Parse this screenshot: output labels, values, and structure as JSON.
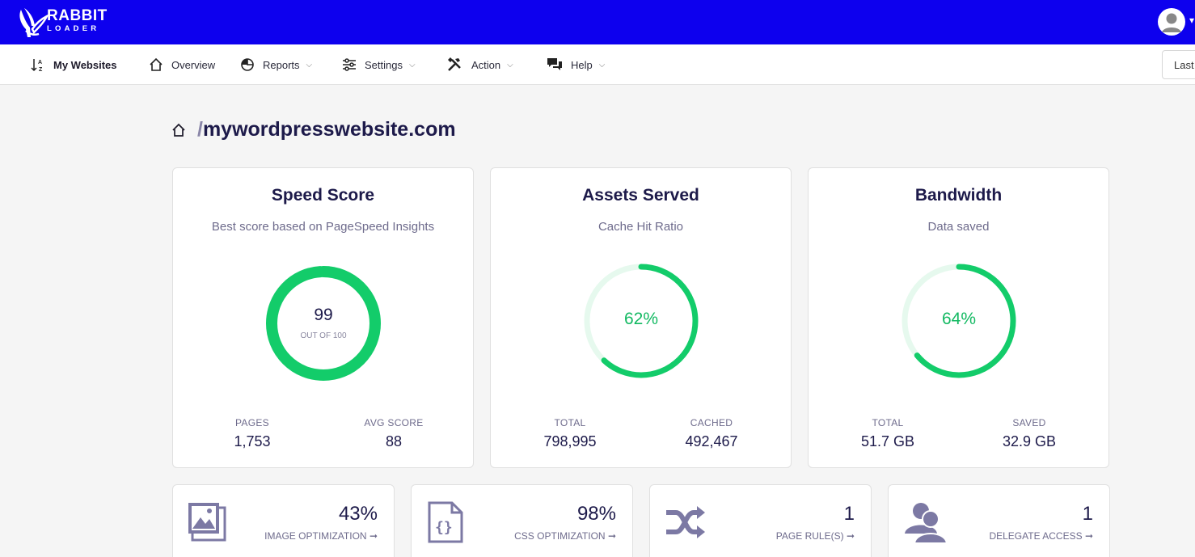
{
  "brand": {
    "line1": "RABBIT",
    "line2": "LOADER"
  },
  "nav": {
    "my_websites": "My Websites",
    "overview": "Overview",
    "reports": "Reports",
    "settings": "Settings",
    "action": "Action",
    "help": "Help",
    "range": "Last"
  },
  "site": {
    "slash": "/",
    "name": "mywordpresswebsite.com"
  },
  "cards": {
    "speed": {
      "title": "Speed Score",
      "subtitle": "Best score based on PageSpeed Insights",
      "value": "99",
      "value_sub": "OUT OF 100",
      "percent": 99,
      "stats": [
        {
          "label": "PAGES",
          "value": "1,753"
        },
        {
          "label": "AVG SCORE",
          "value": "88"
        }
      ]
    },
    "assets": {
      "title": "Assets Served",
      "subtitle": "Cache Hit Ratio",
      "value": "62%",
      "percent": 62,
      "stats": [
        {
          "label": "TOTAL",
          "value": "798,995"
        },
        {
          "label": "CACHED",
          "value": "492,467"
        }
      ]
    },
    "bandwidth": {
      "title": "Bandwidth",
      "subtitle": "Data saved",
      "value": "64%",
      "percent": 64,
      "stats": [
        {
          "label": "TOTAL",
          "value": "51.7 GB"
        },
        {
          "label": "SAVED",
          "value": "32.9 GB"
        }
      ]
    }
  },
  "mini_cards": [
    {
      "value": "43%",
      "label": "IMAGE OPTIMIZATION",
      "icon": "image-icon"
    },
    {
      "value": "98%",
      "label": "CSS OPTIMIZATION",
      "icon": "css-file-icon"
    },
    {
      "value": "1",
      "label": "PAGE RULE(S)",
      "icon": "shuffle-icon"
    },
    {
      "value": "1",
      "label": "DELEGATE ACCESS",
      "icon": "users-icon"
    }
  ],
  "colors": {
    "topbar": "#0d00ee",
    "accent_green": "#13cc6a",
    "green_track": "#e6f9ee",
    "icon_purple": "#7c79a4"
  }
}
